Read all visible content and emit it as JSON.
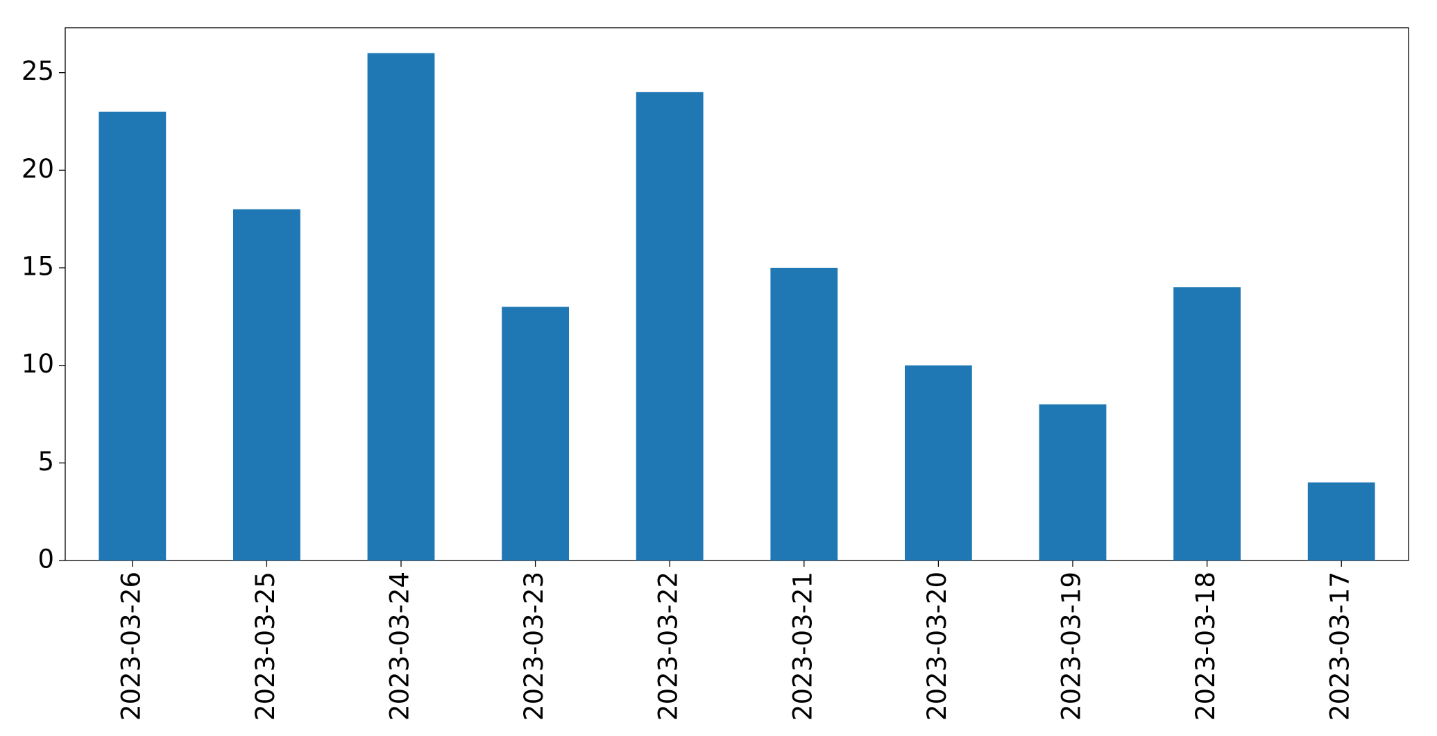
{
  "chart_data": {
    "type": "bar",
    "categories": [
      "2023-03-26",
      "2023-03-25",
      "2023-03-24",
      "2023-03-23",
      "2023-03-22",
      "2023-03-21",
      "2023-03-20",
      "2023-03-19",
      "2023-03-18",
      "2023-03-17"
    ],
    "values": [
      23,
      18,
      26,
      13,
      24,
      15,
      10,
      8,
      14,
      4
    ],
    "color": "#1f77b4",
    "ylim": [
      0,
      27.3
    ],
    "yticks": [
      0,
      5,
      10,
      15,
      20,
      25
    ],
    "grid": false
  }
}
